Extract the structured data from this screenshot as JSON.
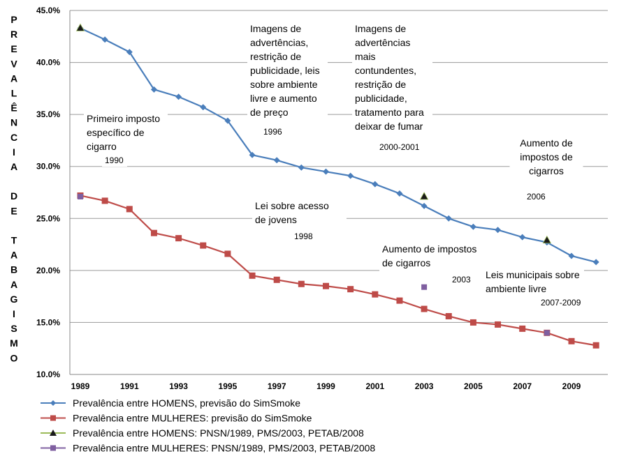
{
  "chart_data": {
    "type": "line",
    "title": "",
    "ylabel": "PREVALÊNCIA DE TABAGISMO",
    "xlabel": "",
    "ylim": [
      10.0,
      45.0
    ],
    "xlim": [
      1989,
      2010
    ],
    "y_ticks": [
      10,
      15,
      20,
      25,
      30,
      35,
      40,
      45
    ],
    "y_tick_labels": [
      "10.0%",
      "15.0%",
      "20.0%",
      "25.0%",
      "30.0%",
      "35.0%",
      "40.0%",
      "45.0%"
    ],
    "x_ticks": [
      1989,
      1991,
      1993,
      1995,
      1997,
      1999,
      2001,
      2003,
      2005,
      2007,
      2009
    ],
    "x_tick_labels": [
      "1989",
      "1991",
      "1993",
      "1995",
      "1997",
      "1999",
      "2001",
      "2003",
      "2005",
      "2007",
      "2009"
    ],
    "grid": "horizontal",
    "legend_position": "bottom",
    "series": [
      {
        "name": "Prevalência entre HOMENS, previsão do SimSmoke",
        "kind": "line",
        "color": "#4a7ebb",
        "marker": "diamond",
        "x": [
          1989,
          1990,
          1991,
          1992,
          1993,
          1994,
          1995,
          1996,
          1997,
          1998,
          1999,
          2000,
          2001,
          2002,
          2003,
          2004,
          2005,
          2006,
          2007,
          2008,
          2009,
          2010
        ],
        "values": [
          43.3,
          42.2,
          41.0,
          37.4,
          36.7,
          35.7,
          34.4,
          31.1,
          30.6,
          29.9,
          29.5,
          29.1,
          28.3,
          27.4,
          26.2,
          25.0,
          24.2,
          23.9,
          23.2,
          22.7,
          21.4,
          20.8
        ]
      },
      {
        "name": "Prevalência entre MULHERES: previsão do SimSmoke",
        "kind": "line",
        "color": "#be4b48",
        "marker": "square",
        "x": [
          1989,
          1990,
          1991,
          1992,
          1993,
          1994,
          1995,
          1996,
          1997,
          1998,
          1999,
          2000,
          2001,
          2002,
          2003,
          2004,
          2005,
          2006,
          2007,
          2008,
          2009,
          2010
        ],
        "values": [
          27.2,
          26.7,
          25.9,
          23.6,
          23.1,
          22.4,
          21.6,
          19.5,
          19.1,
          18.7,
          18.5,
          18.2,
          17.7,
          17.1,
          16.3,
          15.6,
          15.0,
          14.8,
          14.4,
          14.0,
          13.2,
          12.8
        ]
      },
      {
        "name": "Prevalência entre HOMENS: PNSN/1989, PMS/2003, PETAB/2008",
        "kind": "points",
        "color": "#1a1a1a",
        "marker": "triangle",
        "line_color": "#9bbb59",
        "x": [
          1989,
          2003,
          2008
        ],
        "values": [
          43.3,
          27.1,
          22.9
        ]
      },
      {
        "name": "Prevalência entre MULHERES: PNSN/1989, PMS/2003, PETAB/2008",
        "kind": "points",
        "color": "#7f5fa0",
        "marker": "square",
        "line_color": "#7f5fa0",
        "x": [
          1989,
          2003,
          2008
        ],
        "values": [
          27.1,
          18.4,
          14.0
        ]
      }
    ],
    "annotations": [
      {
        "id": "a1990",
        "lines": [
          "Primeiro imposto",
          "específico de",
          "cigarro"
        ],
        "year_label": "1990"
      },
      {
        "id": "a1996",
        "lines": [
          "Imagens de",
          "advertências,",
          "restrição de",
          "publicidade, leis",
          "sobre ambiente",
          "livre e aumento",
          "de preço"
        ],
        "year_label": "1996"
      },
      {
        "id": "a2000",
        "lines": [
          "Imagens de",
          "advertências",
          "mais",
          "contundentes,",
          "restrição de",
          "publicidade,",
          "tratamento para",
          "deixar de fumar"
        ],
        "year_label": "2000-2001"
      },
      {
        "id": "a2006",
        "lines": [
          "Aumento de",
          "impostos de",
          "cigarros"
        ],
        "year_label": "2006"
      },
      {
        "id": "a1998",
        "lines": [
          "Lei sobre acesso",
          "de jovens"
        ],
        "year_label": "1998"
      },
      {
        "id": "a2003",
        "lines": [
          "Aumento de impostos",
          "de cigarros"
        ],
        "year_label": "2003"
      },
      {
        "id": "a2007",
        "lines": [
          "Leis municipais sobre",
          "ambiente livre"
        ],
        "year_label": "2007-2009"
      }
    ]
  }
}
